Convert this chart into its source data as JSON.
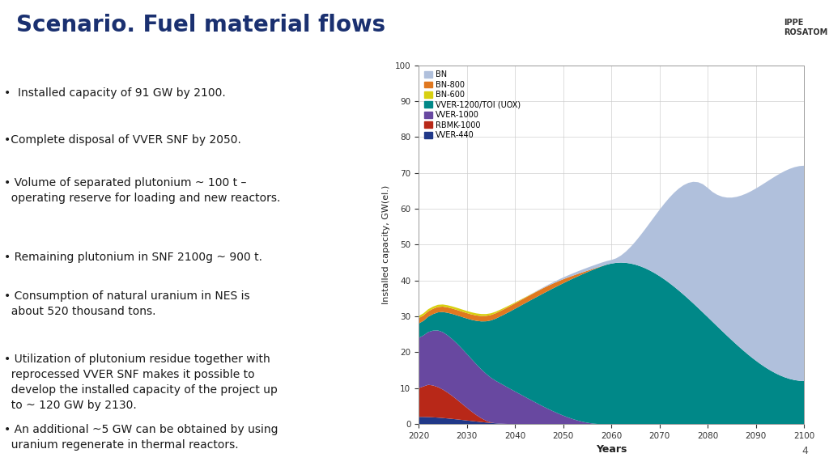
{
  "title": "Scenario. Fuel material flows",
  "title_color": "#1a3070",
  "title_fontsize": 20,
  "bullet_points": [
    "•  Installed capacity of 91 GW by 2100.",
    "•Complete disposal of VVER SNF by 2050.",
    "• Volume of separated plutonium ~ 100 t –\n  operating reserve for loading and new reactors.",
    "• Remaining plutonium in SNF 2100g ~ 900 t.",
    "• Consumption of natural uranium in NES is\n  about 520 thousand tons.",
    "• Utilization of plutonium residue together with\n  reprocessed VVER SNF makes it possible to\n  develop the installed capacity of the project up\n  to ~ 120 GW by 2130.",
    "• An additional ~5 GW can be obtained by using\n  uranium regenerate in thermal reactors."
  ],
  "bullet_fontsize": 10,
  "bullet_color": "#1a1a1a",
  "page_number": "4",
  "xlabel": "Years",
  "ylabel": "Installed capacity, GW(el.)",
  "ylim": [
    0,
    100
  ],
  "xlim": [
    2020,
    2100
  ],
  "xticks": [
    2020,
    2030,
    2040,
    2050,
    2060,
    2070,
    2080,
    2090,
    2100
  ],
  "yticks": [
    0,
    10,
    20,
    30,
    40,
    50,
    60,
    70,
    80,
    90,
    100
  ],
  "series_labels": [
    "BN",
    "BN-800",
    "BN-600",
    "VVER-1200/TOI (UOX)",
    "VVER-1000",
    "RBMK-1000",
    "VVER-440"
  ],
  "series_colors": [
    "#b0c0dc",
    "#e07820",
    "#d8d010",
    "#008888",
    "#6848a0",
    "#b82818",
    "#203888"
  ],
  "stack_colors": [
    "#203888",
    "#b82818",
    "#6848a0",
    "#008888",
    "#e07820",
    "#d8d010",
    "#b0c0dc"
  ],
  "background_color": "#ffffff",
  "plot_bg_color": "#ffffff",
  "grid_color": "#cccccc"
}
